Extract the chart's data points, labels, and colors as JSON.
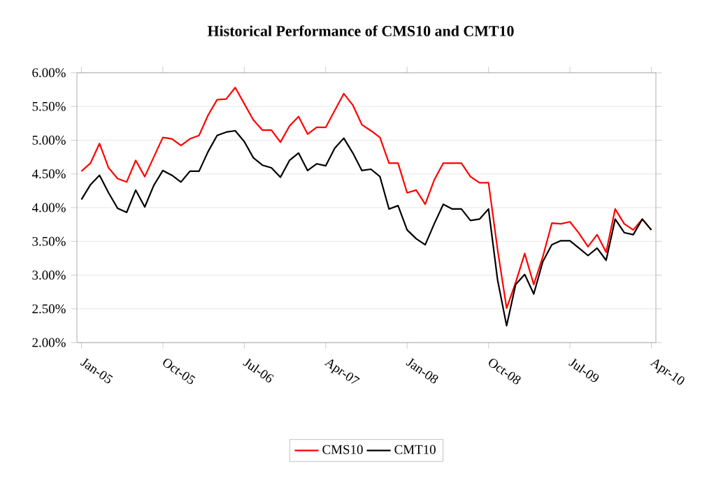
{
  "chart_data": {
    "type": "line",
    "title": "Historical Performance of CMS10 and CMT10",
    "categories": [
      "Jan-05",
      null,
      null,
      null,
      null,
      null,
      null,
      null,
      null,
      "Oct-05",
      null,
      null,
      null,
      null,
      null,
      null,
      null,
      null,
      "Jul-06",
      null,
      null,
      null,
      null,
      null,
      null,
      null,
      null,
      "Apr-07",
      null,
      null,
      null,
      null,
      null,
      null,
      null,
      null,
      "Jan-08",
      null,
      null,
      null,
      null,
      null,
      null,
      null,
      null,
      "Oct-08",
      null,
      null,
      null,
      null,
      null,
      null,
      null,
      null,
      "Jul-09",
      null,
      null,
      null,
      null,
      null,
      null,
      null,
      null,
      "Apr-10"
    ],
    "series": [
      {
        "name": "CMS10",
        "color": "#ff0000",
        "values": [
          4.54,
          4.66,
          4.95,
          4.59,
          4.43,
          4.38,
          4.7,
          4.46,
          4.75,
          5.04,
          5.02,
          4.92,
          5.02,
          5.07,
          5.37,
          5.6,
          5.61,
          5.78,
          5.54,
          5.3,
          5.15,
          5.15,
          4.97,
          5.21,
          5.35,
          5.09,
          5.19,
          5.19,
          5.44,
          5.69,
          5.52,
          5.23,
          5.14,
          5.04,
          4.66,
          4.66,
          4.22,
          4.26,
          4.05,
          4.41,
          4.66,
          4.66,
          4.66,
          4.46,
          4.37,
          4.37,
          3.38,
          2.51,
          2.89,
          3.32,
          2.86,
          3.27,
          3.77,
          3.76,
          3.79,
          3.62,
          3.42,
          3.6,
          3.34,
          3.98,
          3.76,
          3.67,
          3.83,
          3.67
        ]
      },
      {
        "name": "CMT10",
        "color": "#000000",
        "values": [
          4.12,
          4.34,
          4.48,
          4.22,
          3.99,
          3.93,
          4.26,
          4.01,
          4.33,
          4.55,
          4.48,
          4.38,
          4.54,
          4.54,
          4.83,
          5.07,
          5.12,
          5.14,
          4.98,
          4.74,
          4.63,
          4.59,
          4.45,
          4.7,
          4.81,
          4.55,
          4.65,
          4.62,
          4.88,
          5.03,
          4.81,
          4.55,
          4.57,
          4.46,
          3.98,
          4.03,
          3.67,
          3.54,
          3.45,
          3.76,
          4.05,
          3.98,
          3.98,
          3.81,
          3.83,
          3.98,
          2.93,
          2.25,
          2.86,
          3.01,
          2.72,
          3.2,
          3.45,
          3.51,
          3.51,
          3.4,
          3.29,
          3.4,
          3.22,
          3.83,
          3.63,
          3.6,
          3.83,
          3.67
        ]
      }
    ],
    "ylim": [
      2,
      6
    ],
    "yticks": [
      {
        "value": 2,
        "label": "2.00%"
      },
      {
        "value": 2.5,
        "label": "2.50%"
      },
      {
        "value": 3,
        "label": "3.00%"
      },
      {
        "value": 3.5,
        "label": "3.50%"
      },
      {
        "value": 4,
        "label": "4.00%"
      },
      {
        "value": 4.5,
        "label": "4.50%"
      },
      {
        "value": 5,
        "label": "5.00%"
      },
      {
        "value": 5.5,
        "label": "5.50%"
      },
      {
        "value": 6,
        "label": "6.00%"
      }
    ],
    "grid": "y",
    "legend": "bottom",
    "marker": "none",
    "line_style": "solid"
  }
}
